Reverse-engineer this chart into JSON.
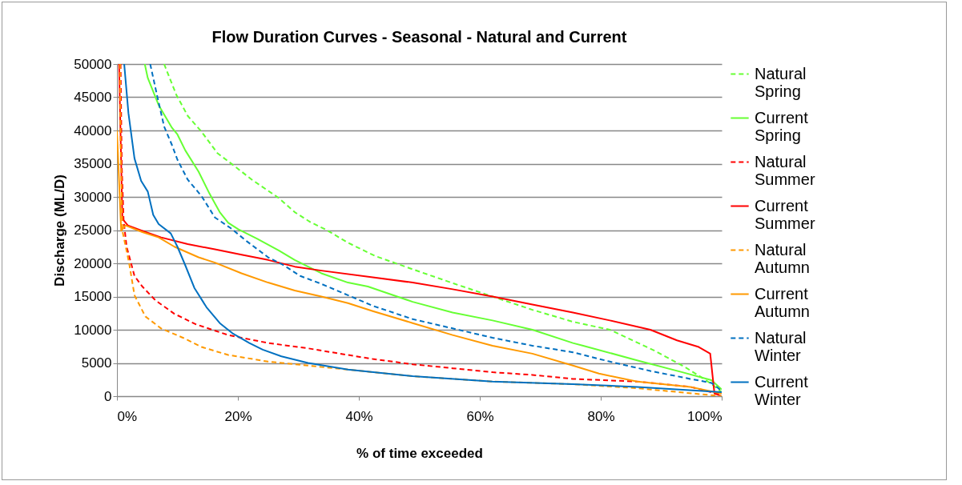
{
  "chart_data": {
    "type": "line",
    "title": "Flow Duration Curves - Seasonal - Natural and Current",
    "xlabel": "% of time exceeded",
    "ylabel": "Discharge (ML/D)",
    "xlim": [
      0,
      100
    ],
    "xticks": [
      {
        "value": 0,
        "label": "0%"
      },
      {
        "value": 20,
        "label": "20%"
      },
      {
        "value": 40,
        "label": "40%"
      },
      {
        "value": 60,
        "label": "60%"
      },
      {
        "value": 80,
        "label": "80%"
      },
      {
        "value": 100,
        "label": "100%"
      }
    ],
    "ylim": [
      0,
      50000
    ],
    "yticks": [
      0,
      5000,
      10000,
      15000,
      20000,
      25000,
      30000,
      35000,
      40000,
      45000,
      50000
    ],
    "grid": "y",
    "legend": "right",
    "marker": "none",
    "series": [
      {
        "name": "Natural Spring",
        "color": "#66ff33",
        "line_style": "dashed",
        "x": [
          7.8,
          9.8,
          11.7,
          14,
          16.6,
          19.2,
          22.3,
          26.8,
          29.4,
          32,
          34.7,
          38.2,
          42.7,
          48.9,
          55.9,
          62.1,
          68.7,
          75.4,
          81.5,
          89,
          93.9,
          97.4,
          99.2,
          100
        ],
        "values": [
          50000,
          45400,
          42200,
          39800,
          36600,
          34800,
          32600,
          29800,
          27700,
          26200,
          25000,
          23100,
          21100,
          19100,
          16900,
          15000,
          13000,
          11200,
          10000,
          6800,
          4400,
          2400,
          1200,
          600
        ]
      },
      {
        "name": "Current Spring",
        "color": "#66ff33",
        "line_style": "solid",
        "x": [
          4.6,
          5.1,
          6.9,
          9.1,
          10,
          11.3,
          13.5,
          15.3,
          17,
          18.4,
          20.1,
          23.2,
          26.8,
          29.4,
          33.8,
          38.2,
          41.5,
          48.9,
          55.5,
          62.1,
          68.7,
          75.4,
          77.1,
          86,
          93.5,
          98.3,
          100
        ],
        "values": [
          50000,
          47900,
          43800,
          40400,
          39400,
          37000,
          33800,
          30500,
          27700,
          26100,
          25100,
          23700,
          21900,
          20500,
          18500,
          17100,
          16500,
          14200,
          12600,
          11400,
          10000,
          8000,
          7600,
          5400,
          3600,
          2400,
          1000
        ]
      },
      {
        "name": "Natural Summer",
        "color": "#ff0000",
        "line_style": "dashed",
        "x": [
          0.6,
          0.8,
          1.1,
          1.6,
          2.9,
          4.2,
          6.4,
          9.5,
          13.1,
          18.4,
          25,
          31.6,
          38.2,
          42.3,
          48.9,
          55.5,
          62.1,
          68.7,
          75.4,
          86,
          94.8,
          100
        ],
        "values": [
          50000,
          34600,
          26500,
          22500,
          18100,
          16500,
          14400,
          12400,
          10800,
          9200,
          8000,
          7200,
          6200,
          5600,
          4800,
          4200,
          3600,
          3200,
          2600,
          2200,
          1400,
          200
        ]
      },
      {
        "name": "Current Summer",
        "color": "#ff0000",
        "line_style": "solid",
        "x": [
          0.35,
          0.9,
          1.8,
          4.2,
          7.3,
          11.7,
          16.2,
          20.6,
          25,
          29.4,
          33.8,
          42.3,
          48.9,
          55.5,
          62.1,
          68.7,
          75.4,
          81.5,
          88.2,
          92.6,
          96.2,
          98.1,
          98.8,
          100
        ],
        "values": [
          50000,
          26700,
          25700,
          24900,
          23900,
          22900,
          22100,
          21300,
          20500,
          19500,
          18900,
          17900,
          17100,
          16100,
          15000,
          13800,
          12600,
          11400,
          10000,
          8400,
          7400,
          6400,
          400,
          0
        ]
      },
      {
        "name": "Natural Autumn",
        "color": "#ff9900",
        "line_style": "dashed",
        "x": [
          0.5,
          0.6,
          0.9,
          2,
          2.9,
          4.7,
          7.3,
          10.9,
          14,
          18.4,
          25,
          31.6,
          38.2,
          48.9,
          62.1,
          75.4,
          86,
          100
        ],
        "values": [
          50000,
          38600,
          24900,
          20100,
          15200,
          12000,
          10200,
          8800,
          7400,
          6200,
          5200,
          4600,
          4000,
          3000,
          2200,
          1800,
          1200,
          0
        ]
      },
      {
        "name": "Current Autumn",
        "color": "#ff9900",
        "line_style": "solid",
        "x": [
          0,
          0.7,
          1.4,
          4.2,
          6.9,
          9.5,
          13.5,
          16.2,
          20.6,
          25,
          29.4,
          33.8,
          38.2,
          42.3,
          48.9,
          55.5,
          62.1,
          68.7,
          75.4,
          79.7,
          86,
          94.8,
          100
        ],
        "values": [
          40000,
          24900,
          25700,
          24700,
          23900,
          22500,
          20900,
          20100,
          18500,
          17100,
          15900,
          15000,
          14000,
          12800,
          11000,
          9200,
          7600,
          6400,
          4600,
          3400,
          2200,
          1400,
          400
        ]
      },
      {
        "name": "Natural Winter",
        "color": "#0070c0",
        "line_style": "dashed",
        "x": [
          5.5,
          6.7,
          7.8,
          9.1,
          10,
          11.7,
          14,
          16.2,
          18.8,
          21.5,
          25,
          27.6,
          30.3,
          33.8,
          38.2,
          42.3,
          48.9,
          55.5,
          62.1,
          68.7,
          75.4,
          81.5,
          88.2,
          94.8,
          98.3,
          100
        ],
        "values": [
          50000,
          45000,
          40600,
          37800,
          35600,
          32600,
          30100,
          26900,
          25300,
          23300,
          20900,
          19700,
          18100,
          16900,
          15200,
          13600,
          11600,
          10200,
          8800,
          7600,
          6600,
          5200,
          3800,
          2600,
          2000,
          800
        ]
      },
      {
        "name": "Current Winter",
        "color": "#0070c0",
        "line_style": "solid",
        "x": [
          1.2,
          1.9,
          2.9,
          4,
          5.1,
          6,
          6.9,
          8.9,
          10,
          11.3,
          12.8,
          14.8,
          17,
          19.2,
          21.9,
          24.1,
          27.2,
          31.6,
          38.2,
          48.9,
          62.1,
          75.4,
          86,
          100
        ],
        "values": [
          50000,
          42600,
          35800,
          32400,
          30800,
          27300,
          25900,
          24500,
          22500,
          19700,
          16300,
          13400,
          11000,
          9400,
          8000,
          7000,
          6000,
          5000,
          4000,
          3000,
          2200,
          1800,
          1400,
          600
        ]
      }
    ]
  }
}
